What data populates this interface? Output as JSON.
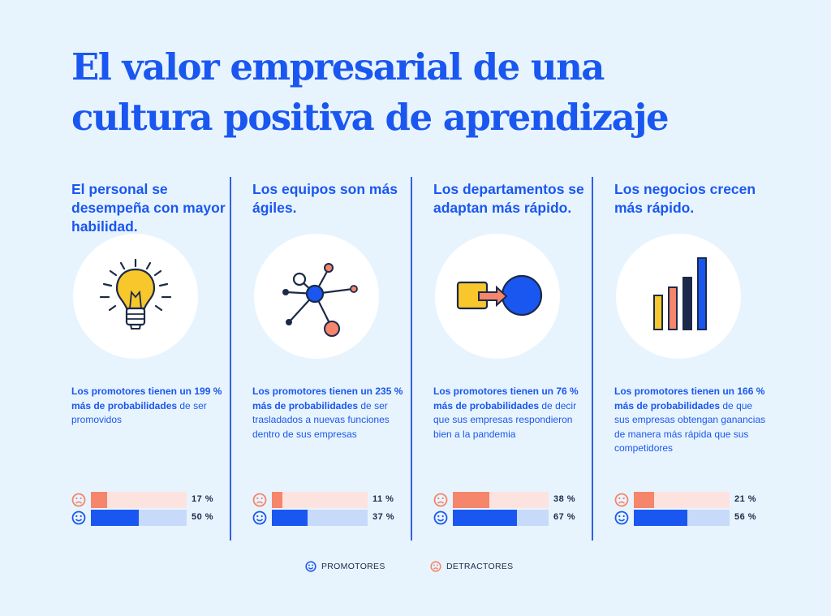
{
  "title": {
    "line1": "El valor empresarial de una",
    "line2": "cultura positiva de aprendizaje"
  },
  "colors": {
    "promoter": "#1a57f0",
    "promoter_track": "#c7dafa",
    "detractor": "#f5856b",
    "detractor_track": "#fde3df",
    "background": "#e8f4fd"
  },
  "columns": [
    {
      "heading": "El personal se desempeña con mayor habilidad.",
      "icon": "lightbulb-icon",
      "desc_bold": "Los promotores tienen un 199 % más de probabilidades",
      "desc_rest": " de ser promovidos",
      "detractor_label": "17 %",
      "promoter_label": "50 %"
    },
    {
      "heading": "Los equipos son más ágiles.",
      "icon": "network-icon",
      "desc_bold": "Los promotores tienen un 235 % más de probabilidades",
      "desc_rest": " de ser trasladados a nuevas funciones dentro de sus empresas",
      "detractor_label": "11 %",
      "promoter_label": "37 %"
    },
    {
      "heading": "Los departamentos se adaptan más rápido.",
      "icon": "square-to-circle-icon",
      "desc_bold": "Los promotores tienen un 76 % más de probabilidades",
      "desc_rest": " de decir que sus empresas respondieron bien a la pandemia",
      "detractor_label": "38 %",
      "promoter_label": "67 %"
    },
    {
      "heading": "Los negocios crecen más rápido.",
      "icon": "bar-chart-icon",
      "desc_bold": "Los promotores tienen un 166 % más de probabilidades",
      "desc_rest": " de que sus empresas obtengan ganancias de manera más rápida que sus competidores",
      "detractor_label": "21 %",
      "promoter_label": "56 %"
    }
  ],
  "legend": {
    "promoters": "PROMOTORES",
    "detractors": "DETRACTORES"
  },
  "chart_data": {
    "type": "bar",
    "orientation": "horizontal",
    "categories": [
      "El personal se desempeña con mayor habilidad.",
      "Los equipos son más ágiles.",
      "Los departamentos se adaptan más rápido.",
      "Los negocios crecen más rápido."
    ],
    "series": [
      {
        "name": "DETRACTORES",
        "values": [
          17,
          11,
          38,
          21
        ],
        "color": "#f5856b"
      },
      {
        "name": "PROMOTORES",
        "values": [
          50,
          37,
          67,
          56
        ],
        "color": "#1a57f0"
      }
    ],
    "xlim": [
      0,
      100
    ],
    "unit": "%",
    "legend": "bottom"
  }
}
